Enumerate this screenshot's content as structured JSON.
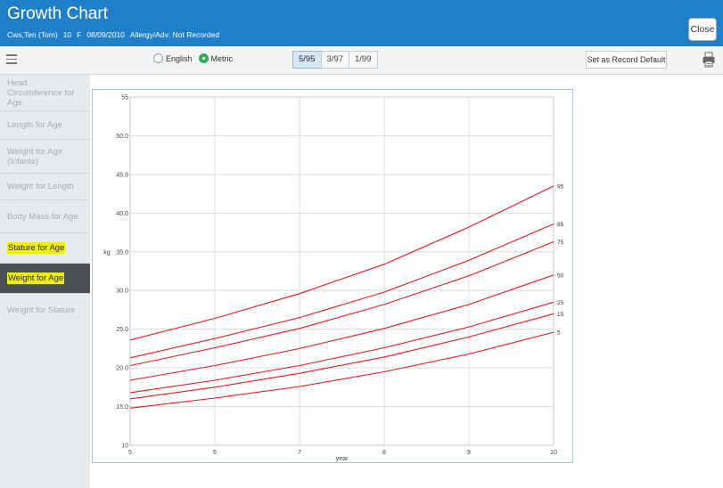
{
  "header": {
    "title": "Growth Chart",
    "patient_name": "Cws,Ten (Tom)",
    "age": "10",
    "sex": "F",
    "dob": "08/09/2010",
    "allergy": "Allergy/Adv: Not Recorded",
    "close_label": "Close"
  },
  "toolbar": {
    "units": [
      {
        "label": "English",
        "selected": false
      },
      {
        "label": "Metric",
        "selected": true
      }
    ],
    "percentile_sets": [
      {
        "label": "5/95",
        "active": true
      },
      {
        "label": "3/97",
        "active": false
      },
      {
        "label": "1/99",
        "active": false
      }
    ],
    "default_label": "Set as Record Default"
  },
  "sidebar": {
    "items": [
      {
        "label": "Head Circumference for Age",
        "state": "normal"
      },
      {
        "label": "Length for Age",
        "state": "normal"
      },
      {
        "label": "Weight for Age (Infants)",
        "state": "normal"
      },
      {
        "label": "Weight for Length",
        "state": "normal"
      },
      {
        "label": "Body Mass for Age",
        "state": "normal"
      },
      {
        "label": "Stature for Age",
        "state": "highlighted"
      },
      {
        "label": "Weight for Age",
        "state": "selected"
      },
      {
        "label": "Weight for Stature",
        "state": "normal"
      }
    ]
  },
  "colors": {
    "header": "#1f7fc8",
    "curve": "#e21b23",
    "selected_nav": "#4b5054",
    "highlight": "#f0f100"
  },
  "chart_data": {
    "type": "line",
    "title": "",
    "xlabel": "year",
    "ylabel": "kg",
    "xlim": [
      5,
      10
    ],
    "ylim": [
      10,
      55
    ],
    "grid": true,
    "x_ticks": [
      "5",
      "6",
      "7",
      "8",
      "9",
      "10"
    ],
    "y_ticks": [
      "10",
      "15.0",
      "20.0",
      "25.0",
      "30.0",
      "35.0",
      "40.0",
      "45.0",
      "50.0",
      "55"
    ],
    "x": [
      5,
      6,
      7,
      8,
      9,
      10
    ],
    "series": [
      {
        "name": "95",
        "values": [
          23.6,
          26.4,
          29.6,
          33.4,
          38.2,
          43.5
        ]
      },
      {
        "name": "85",
        "values": [
          21.3,
          23.8,
          26.5,
          29.8,
          33.9,
          38.6
        ]
      },
      {
        "name": "75",
        "values": [
          20.3,
          22.6,
          25.1,
          28.2,
          31.9,
          36.3
        ]
      },
      {
        "name": "50",
        "values": [
          18.4,
          20.3,
          22.5,
          25.1,
          28.2,
          32.0
        ]
      },
      {
        "name": "25",
        "values": [
          16.8,
          18.4,
          20.3,
          22.6,
          25.3,
          28.5
        ]
      },
      {
        "name": "15",
        "values": [
          16.0,
          17.5,
          19.3,
          21.4,
          24.0,
          27.0
        ]
      },
      {
        "name": "5",
        "values": [
          14.8,
          16.1,
          17.6,
          19.5,
          21.8,
          24.6
        ]
      }
    ]
  }
}
